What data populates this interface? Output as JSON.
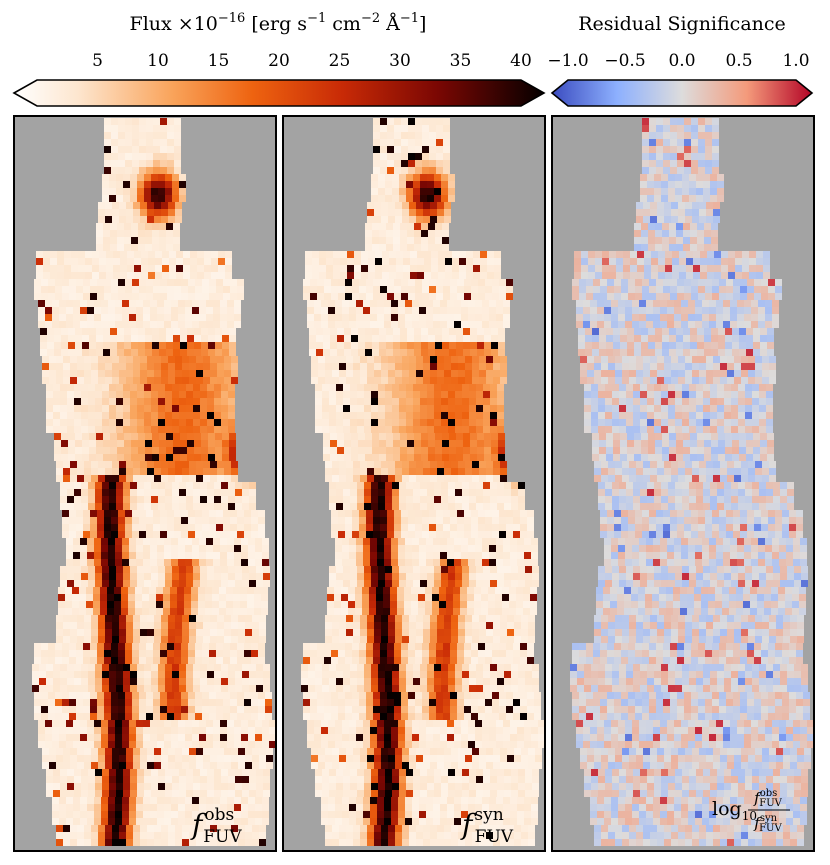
{
  "chart_data": [
    {
      "type": "heatmap",
      "panel_label": "f_FUV^obs",
      "colormap": "gist_heat_r",
      "colorbar": {
        "title": "Flux ×10^-16 [erg s^-1 cm^-2 Å^-1]",
        "title_parts": {
          "lead": "Flux ×10",
          "exp1": "−16",
          "mid1": " [erg s",
          "exp2": "−1",
          "mid2": " cm",
          "exp3": "−2",
          "mid3": " Å",
          "exp4": "−1",
          "tail": "]"
        },
        "ticks": [
          "5",
          "10",
          "15",
          "20",
          "25",
          "30",
          "35",
          "40"
        ],
        "tick_values": [
          5,
          10,
          15,
          20,
          25,
          30,
          35,
          40
        ],
        "range": [
          0,
          40
        ],
        "extend": "both"
      }
    },
    {
      "type": "heatmap",
      "panel_label": "f_FUV^syn",
      "colormap": "gist_heat_r",
      "shares_colorbar_with": "f_FUV^obs"
    },
    {
      "type": "heatmap",
      "panel_label": "log10 f_FUV^obs / f_FUV^syn",
      "colormap": "coolwarm",
      "colorbar": {
        "title": "Residual Significance",
        "ticks": [
          "−1.0",
          "−0.5",
          "0.0",
          "0.5",
          "1.0"
        ],
        "tick_values": [
          -1.0,
          -0.5,
          0.0,
          0.5,
          1.0
        ],
        "range": [
          -1.0,
          1.0
        ],
        "extend": "both"
      }
    }
  ],
  "labels": {
    "obs_f": "f",
    "obs_sup": "obs",
    "obs_sub": "FUV",
    "syn_f": "f",
    "syn_sup": "syn",
    "syn_sub": "FUV",
    "res_log": "log",
    "res_log_sub": "10",
    "res_num_f": "f",
    "res_num_sup": "obs",
    "res_num_sub": "FUV",
    "res_den_f": "f",
    "res_den_sup": "syn",
    "res_den_sub": "FUV"
  },
  "colors": {
    "panel_background": "#a3a3a3",
    "frame": "#000000",
    "flux_low": "#fffaf5",
    "flux_mid": "#f27a10",
    "flux_high": "#000000",
    "res_low": "#3b4cc0",
    "res_mid": "#dddddd",
    "res_high": "#b40426"
  }
}
